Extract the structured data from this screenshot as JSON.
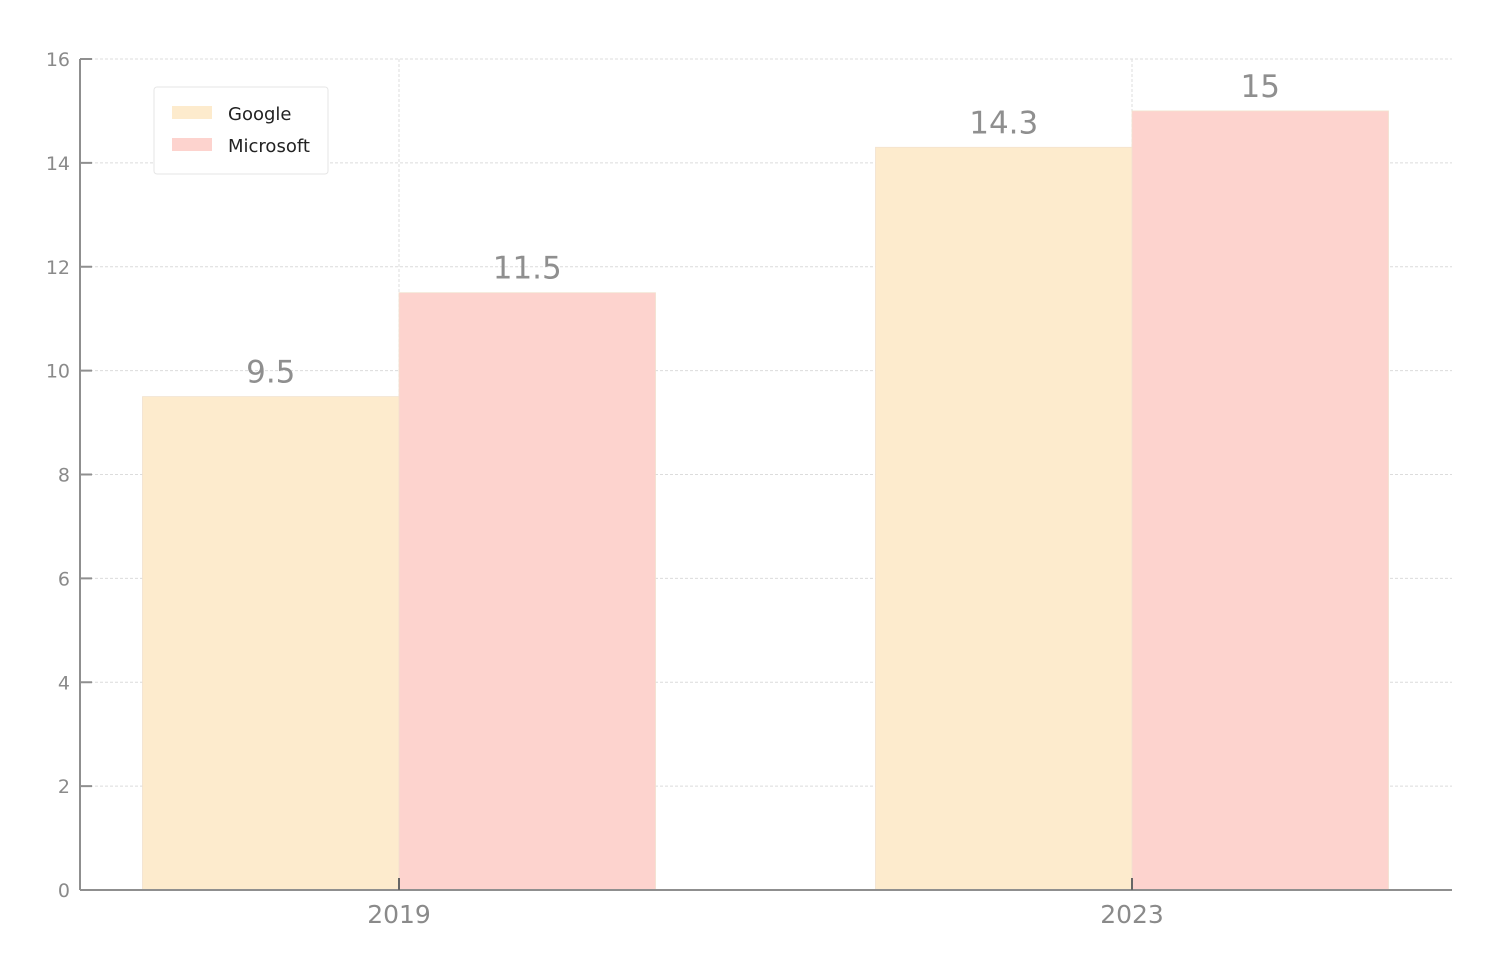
{
  "chart_data": {
    "type": "bar",
    "title": "",
    "xlabel": "",
    "ylabel": "",
    "categories": [
      "2019",
      "2023"
    ],
    "series": [
      {
        "name": "Google",
        "values": [
          9.5,
          14.3
        ],
        "color": "#fdebcd"
      },
      {
        "name": "Microsoft",
        "values": [
          11.5,
          15
        ],
        "color": "#fdd3ce"
      }
    ],
    "data_labels": [
      [
        "9.5",
        "14.3"
      ],
      [
        "11.5",
        "15"
      ]
    ],
    "ylim": [
      0,
      16
    ],
    "yticks": [
      0,
      2,
      4,
      6,
      8,
      10,
      12,
      14,
      16
    ],
    "ytick_labels": [
      "0",
      "2",
      "4",
      "6",
      "8",
      "10",
      "12",
      "14",
      "16"
    ],
    "grid": true,
    "legend_position": "top-left",
    "axis_color": "#8f8f8f",
    "grid_color": "#dcdcdc"
  }
}
